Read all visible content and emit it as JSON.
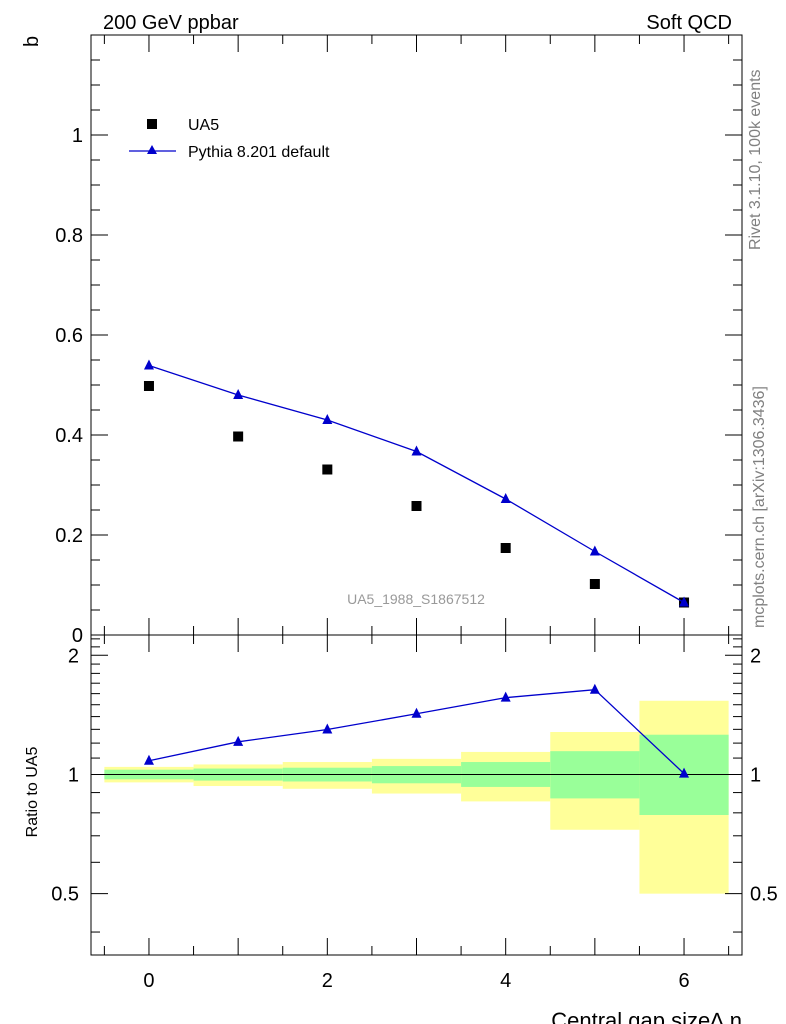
{
  "header": {
    "left": "200 GeV ppbar",
    "right": "Soft QCD"
  },
  "side_text": {
    "rivet": "Rivet 3.1.10,  100k events",
    "mcplots": "mcplots.cern.ch [arXiv:1306.3436]"
  },
  "chart_data": [
    {
      "type": "scatter",
      "ylabel": "b",
      "watermark": "UA5_1988_S1867512",
      "xlim": [
        -0.65,
        6.65
      ],
      "ylim": [
        0,
        1.2
      ],
      "y_ticks": [
        {
          "v": 0,
          "label": "0"
        },
        {
          "v": 0.2,
          "label": "0.2"
        },
        {
          "v": 0.4,
          "label": "0.4"
        },
        {
          "v": 0.6,
          "label": "0.6"
        },
        {
          "v": 0.8,
          "label": "0.8"
        },
        {
          "v": 1.0,
          "label": "1"
        }
      ],
      "legend_position": "top-left",
      "series": [
        {
          "name": "UA5",
          "style": "marker",
          "marker": "square",
          "color": "#000000",
          "x": [
            0,
            1,
            2,
            3,
            4,
            5,
            6
          ],
          "y": [
            0.498,
            0.397,
            0.331,
            0.258,
            0.174,
            0.102,
            0.065
          ]
        },
        {
          "name": "Pythia 8.201 default",
          "style": "line+marker",
          "marker": "triangle",
          "color": "#0000cc",
          "x": [
            0,
            1,
            2,
            3,
            4,
            5,
            6
          ],
          "y": [
            0.539,
            0.48,
            0.43,
            0.367,
            0.272,
            0.167,
            0.065
          ]
        }
      ]
    },
    {
      "type": "line",
      "ylabel": "Ratio to UA5",
      "xlabel": "Central gap size∆ η",
      "xlim": [
        -0.65,
        6.65
      ],
      "ylim": [
        0.35,
        2.25
      ],
      "y_scale": "log",
      "y_ticks_left": [
        {
          "v": 0.5,
          "label": "0.5"
        },
        {
          "v": 1,
          "label": "1"
        },
        {
          "v": 2,
          "label": "2"
        }
      ],
      "y_ticks_right": [
        {
          "v": 0.5,
          "label": "0.5"
        },
        {
          "v": 1,
          "label": "1"
        },
        {
          "v": 2,
          "label": "2"
        }
      ],
      "x_ticks": [
        {
          "v": 0,
          "label": "0"
        },
        {
          "v": 2,
          "label": "2"
        },
        {
          "v": 4,
          "label": "4"
        },
        {
          "v": 6,
          "label": "6"
        }
      ],
      "reference_line": 1,
      "uncertainty_bands": {
        "yellow_color": "#ffff99",
        "green_color": "#99ff99",
        "bins": [
          {
            "x0": -0.5,
            "x1": 0.5,
            "y_lo": 0.955,
            "y_hi": 1.045,
            "g_lo": 0.972,
            "g_hi": 1.028
          },
          {
            "x0": 0.5,
            "x1": 1.5,
            "y_lo": 0.935,
            "y_hi": 1.06,
            "g_lo": 0.965,
            "g_hi": 1.035
          },
          {
            "x0": 1.5,
            "x1": 2.5,
            "y_lo": 0.92,
            "y_hi": 1.075,
            "g_lo": 0.96,
            "g_hi": 1.04
          },
          {
            "x0": 2.5,
            "x1": 3.5,
            "y_lo": 0.895,
            "y_hi": 1.095,
            "g_lo": 0.95,
            "g_hi": 1.05
          },
          {
            "x0": 3.5,
            "x1": 4.5,
            "y_lo": 0.855,
            "y_hi": 1.14,
            "g_lo": 0.93,
            "g_hi": 1.075
          },
          {
            "x0": 4.5,
            "x1": 5.5,
            "y_lo": 0.725,
            "y_hi": 1.28,
            "g_lo": 0.87,
            "g_hi": 1.145
          },
          {
            "x0": 5.5,
            "x1": 6.5,
            "y_lo": 0.5,
            "y_hi": 1.535,
            "g_lo": 0.79,
            "g_hi": 1.26
          }
        ]
      },
      "series": [
        {
          "name": "Pythia 8.201 default",
          "color": "#0000cc",
          "marker": "triangle",
          "x": [
            0,
            1,
            2,
            3,
            4,
            5,
            6
          ],
          "y": [
            1.083,
            1.209,
            1.299,
            1.423,
            1.563,
            1.637,
            1.005
          ]
        }
      ]
    }
  ]
}
